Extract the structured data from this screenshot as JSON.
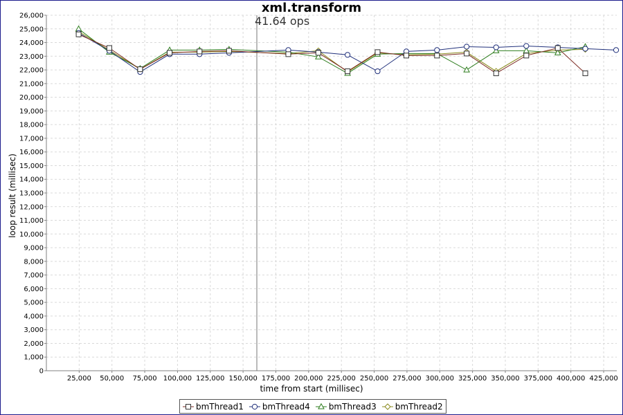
{
  "chart_data": {
    "type": "line",
    "title": "xml.transform",
    "xlabel": "time from start (millisec)",
    "ylabel": "loop result (millisec)",
    "xlim": [
      0,
      435000
    ],
    "ylim": [
      0,
      26000
    ],
    "x_ticks": [
      "25,000",
      "50,000",
      "75,000",
      "100,000",
      "125,000",
      "150,000",
      "175,000",
      "200,000",
      "225,000",
      "250,000",
      "275,000",
      "300,000",
      "325,000",
      "350,000",
      "375,000",
      "400,000",
      "425,000"
    ],
    "y_ticks": [
      "0",
      "1,000",
      "2,000",
      "3,000",
      "4,000",
      "5,000",
      "6,000",
      "7,000",
      "8,000",
      "9,000",
      "10,000",
      "11,000",
      "12,000",
      "13,000",
      "14,000",
      "15,000",
      "16,000",
      "17,000",
      "18,000",
      "19,000",
      "20,000",
      "21,000",
      "22,000",
      "23,000",
      "24,000",
      "25,000",
      "26,000"
    ],
    "grid": true,
    "legend_position": "bottom",
    "marker": {
      "x": 160500,
      "label": "41.64 ops"
    },
    "series": [
      {
        "name": "bmThread1",
        "color": "#7b2a22",
        "marker": "square",
        "points": [
          [
            24600,
            24600
          ],
          [
            48000,
            23600
          ],
          [
            71500,
            22050
          ],
          [
            94000,
            23250
          ],
          [
            116800,
            23350
          ],
          [
            139300,
            23400
          ],
          [
            184500,
            23150
          ],
          [
            207400,
            23250
          ],
          [
            229700,
            21900
          ],
          [
            252600,
            23300
          ],
          [
            274500,
            23050
          ],
          [
            297900,
            23050
          ],
          [
            320500,
            23200
          ],
          [
            343000,
            21750
          ],
          [
            366000,
            23050
          ],
          [
            390000,
            23600
          ],
          [
            411000,
            21750
          ]
        ]
      },
      {
        "name": "bmThread4",
        "color": "#1f2f7a",
        "marker": "circle",
        "points": [
          [
            24600,
            24700
          ],
          [
            48000,
            23400
          ],
          [
            71500,
            21850
          ],
          [
            94000,
            23150
          ],
          [
            116800,
            23150
          ],
          [
            139300,
            23250
          ],
          [
            184500,
            23450
          ],
          [
            207400,
            23300
          ],
          [
            229700,
            23100
          ],
          [
            252600,
            21900
          ],
          [
            274500,
            23350
          ],
          [
            297900,
            23450
          ],
          [
            320500,
            23700
          ],
          [
            343000,
            23650
          ],
          [
            366000,
            23750
          ],
          [
            390000,
            23650
          ],
          [
            411000,
            23550
          ],
          [
            434500,
            23450
          ]
        ]
      },
      {
        "name": "bmThread3",
        "color": "#2e7d1e",
        "marker": "triangle",
        "points": [
          [
            24600,
            25000
          ],
          [
            48000,
            23300
          ],
          [
            71500,
            22100
          ],
          [
            94000,
            23450
          ],
          [
            116800,
            23450
          ],
          [
            139300,
            23500
          ],
          [
            184500,
            23300
          ],
          [
            207400,
            22950
          ],
          [
            229700,
            21750
          ],
          [
            252600,
            23150
          ],
          [
            274500,
            23200
          ],
          [
            297900,
            23200
          ],
          [
            320500,
            22000
          ],
          [
            343000,
            23400
          ],
          [
            366000,
            23400
          ],
          [
            390000,
            23250
          ],
          [
            411000,
            23700
          ]
        ]
      },
      {
        "name": "bmThread2",
        "color": "#8a8a1c",
        "marker": "diamond",
        "points": [
          [
            24600,
            24800
          ],
          [
            48000,
            23450
          ],
          [
            71500,
            22050
          ],
          [
            94000,
            23300
          ],
          [
            116800,
            23300
          ],
          [
            139300,
            23350
          ],
          [
            184500,
            23200
          ],
          [
            207400,
            23400
          ],
          [
            229700,
            21850
          ],
          [
            252600,
            23250
          ],
          [
            274500,
            23100
          ],
          [
            297900,
            23150
          ],
          [
            320500,
            23300
          ],
          [
            343000,
            21900
          ],
          [
            366000,
            23200
          ],
          [
            390000,
            23450
          ],
          [
            411000,
            23500
          ]
        ]
      }
    ]
  }
}
